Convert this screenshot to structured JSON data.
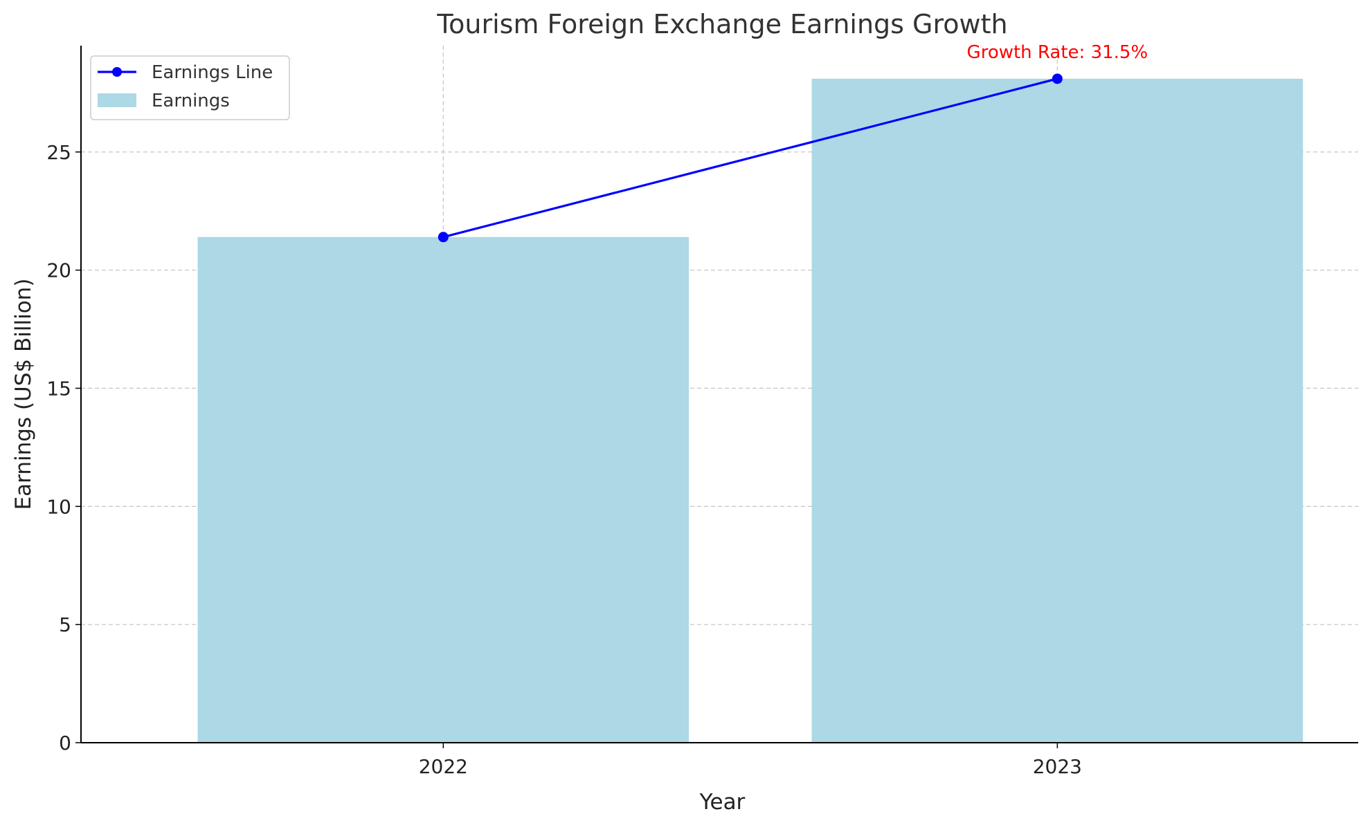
{
  "chart_data": {
    "type": "bar",
    "title": "Tourism Foreign Exchange Earnings Growth",
    "xlabel": "Year",
    "ylabel": "Earnings (US$ Billion)",
    "categories": [
      "2022",
      "2023"
    ],
    "series": [
      {
        "name": "Earnings",
        "kind": "bar",
        "values": [
          21.4,
          28.1
        ],
        "color": "#add8e6"
      },
      {
        "name": "Earnings Line",
        "kind": "line",
        "values": [
          21.4,
          28.1
        ],
        "color": "#0000ff"
      }
    ],
    "ylim": [
      0,
      29.5
    ],
    "yticks": [
      0,
      5,
      10,
      15,
      20,
      25
    ],
    "grid": true,
    "legend_position": "top-left",
    "annotation": {
      "text": "Growth Rate: 31.5%",
      "category": "2023",
      "color": "#ff0000"
    }
  }
}
